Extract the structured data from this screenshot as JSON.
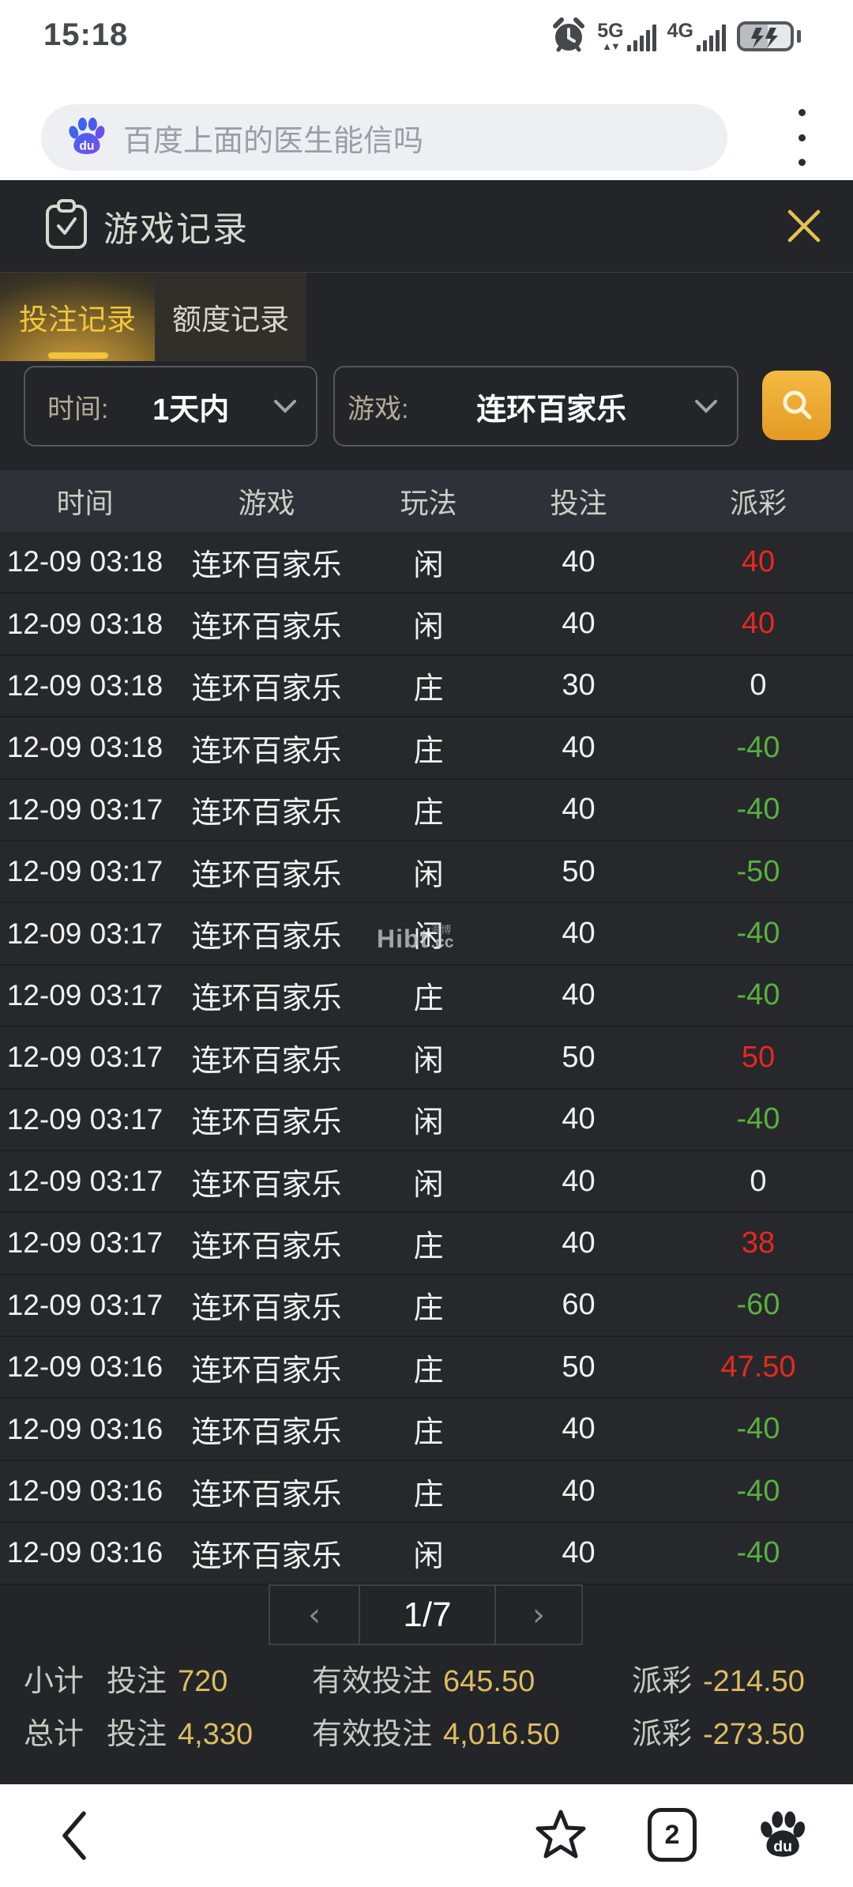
{
  "status_bar": {
    "time": "15:18",
    "net1": "5G",
    "net2": "4G"
  },
  "search_bar": {
    "query": "百度上面的医生能信吗"
  },
  "panel": {
    "title": "游戏记录",
    "tabs": [
      {
        "label": "投注记录"
      },
      {
        "label": "额度记录"
      }
    ],
    "filters": {
      "time_label": "时间:",
      "time_value": "1天内",
      "game_label": "游戏:",
      "game_value": "连环百家乐"
    },
    "table": {
      "headers": [
        "时间",
        "游戏",
        "玩法",
        "投注",
        "派彩"
      ],
      "rows": [
        {
          "time": "12-09 03:18",
          "game": "连环百家乐",
          "play": "闲",
          "bet": "40",
          "payout": "40",
          "payout_color": "red"
        },
        {
          "time": "12-09 03:18",
          "game": "连环百家乐",
          "play": "闲",
          "bet": "40",
          "payout": "40",
          "payout_color": "red"
        },
        {
          "time": "12-09 03:18",
          "game": "连环百家乐",
          "play": "庄",
          "bet": "30",
          "payout": "0",
          "payout_color": "white"
        },
        {
          "time": "12-09 03:18",
          "game": "连环百家乐",
          "play": "庄",
          "bet": "40",
          "payout": "-40",
          "payout_color": "green"
        },
        {
          "time": "12-09 03:17",
          "game": "连环百家乐",
          "play": "庄",
          "bet": "40",
          "payout": "-40",
          "payout_color": "green"
        },
        {
          "time": "12-09 03:17",
          "game": "连环百家乐",
          "play": "闲",
          "bet": "50",
          "payout": "-50",
          "payout_color": "green"
        },
        {
          "time": "12-09 03:17",
          "game": "连环百家乐",
          "play": "闲",
          "bet": "40",
          "payout": "-40",
          "payout_color": "green"
        },
        {
          "time": "12-09 03:17",
          "game": "连环百家乐",
          "play": "庄",
          "bet": "40",
          "payout": "-40",
          "payout_color": "green"
        },
        {
          "time": "12-09 03:17",
          "game": "连环百家乐",
          "play": "闲",
          "bet": "50",
          "payout": "50",
          "payout_color": "red"
        },
        {
          "time": "12-09 03:17",
          "game": "连环百家乐",
          "play": "闲",
          "bet": "40",
          "payout": "-40",
          "payout_color": "green"
        },
        {
          "time": "12-09 03:17",
          "game": "连环百家乐",
          "play": "闲",
          "bet": "40",
          "payout": "0",
          "payout_color": "white"
        },
        {
          "time": "12-09 03:17",
          "game": "连环百家乐",
          "play": "庄",
          "bet": "40",
          "payout": "38",
          "payout_color": "red"
        },
        {
          "time": "12-09 03:17",
          "game": "连环百家乐",
          "play": "庄",
          "bet": "60",
          "payout": "-60",
          "payout_color": "green"
        },
        {
          "time": "12-09 03:16",
          "game": "连环百家乐",
          "play": "庄",
          "bet": "50",
          "payout": "47.50",
          "payout_color": "red"
        },
        {
          "time": "12-09 03:16",
          "game": "连环百家乐",
          "play": "庄",
          "bet": "40",
          "payout": "-40",
          "payout_color": "green"
        },
        {
          "time": "12-09 03:16",
          "game": "连环百家乐",
          "play": "庄",
          "bet": "40",
          "payout": "-40",
          "payout_color": "green"
        },
        {
          "time": "12-09 03:16",
          "game": "连环百家乐",
          "play": "闲",
          "bet": "40",
          "payout": "-40",
          "payout_color": "green"
        }
      ]
    },
    "watermark": {
      "text": "Hibt",
      "cn": "海博",
      "cc": ".cc"
    },
    "pagination": {
      "prev": "‹",
      "current": "1/7",
      "next": "›"
    },
    "summary": [
      {
        "name": "小计",
        "bet_label": "投注",
        "bet": "720",
        "valid_label": "有效投注",
        "valid": "645.50",
        "payout_label": "派彩",
        "payout": "-214.50"
      },
      {
        "name": "总计",
        "bet_label": "投注",
        "bet": "4,330",
        "valid_label": "有效投注",
        "valid": "4,016.50",
        "payout_label": "派彩",
        "payout": "-273.50"
      }
    ]
  },
  "bottom_nav": {
    "tab_count": "2"
  },
  "colors": {
    "panel_bg": "#232528",
    "accent_gold": "#E9A93C",
    "tab_gold": "#F2C63E",
    "value_gold": "#DCBD60",
    "payout_red": "#E8281E",
    "payout_green": "#5BB03E"
  }
}
